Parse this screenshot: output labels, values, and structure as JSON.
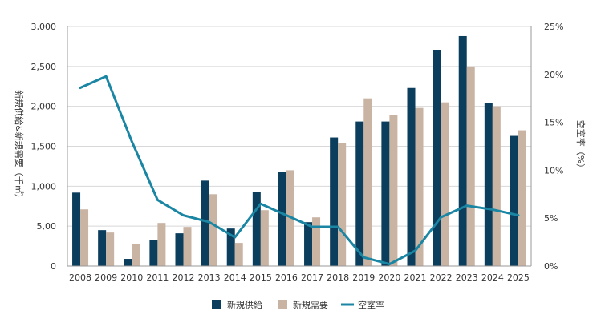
{
  "chart_data": {
    "type": "bar",
    "categories": [
      "2008",
      "2009",
      "2010",
      "2011",
      "2012",
      "2013",
      "2014",
      "2015",
      "2016",
      "2017",
      "2018",
      "2019",
      "2020",
      "2021",
      "2022",
      "2023",
      "2024",
      "2025"
    ],
    "series": [
      {
        "name": "新規供給",
        "type": "bar",
        "axis": "left",
        "color": "#0b3d5c",
        "values": [
          920,
          450,
          90,
          330,
          410,
          1070,
          470,
          930,
          1180,
          550,
          1610,
          1810,
          1810,
          2230,
          2700,
          2880,
          2040,
          1630
        ]
      },
      {
        "name": "新規需要",
        "type": "bar",
        "axis": "left",
        "color": "#c9b3a3",
        "values": [
          710,
          420,
          280,
          540,
          490,
          900,
          290,
          700,
          1200,
          610,
          1540,
          2100,
          1890,
          1980,
          2050,
          2500,
          2000,
          1700
        ]
      },
      {
        "name": "空室率",
        "type": "line",
        "axis": "right",
        "color": "#1a86a3",
        "values": [
          18.6,
          19.8,
          13.0,
          6.9,
          5.3,
          4.6,
          3.0,
          6.5,
          5.3,
          4.1,
          4.1,
          0.9,
          0.2,
          1.6,
          5.1,
          6.3,
          5.9,
          5.3
        ]
      }
    ],
    "ylabel": "新規供給&新規需要（千㎡）",
    "y2label": "空室率（%）",
    "xlabel": "",
    "title": "",
    "ylim": [
      0,
      3000
    ],
    "y2lim": [
      0,
      25
    ],
    "yticks": [
      "0",
      "5,00",
      "1,000",
      "1,500",
      "2,000",
      "2,500",
      "3,000"
    ],
    "ytick_values": [
      0,
      500,
      1000,
      1500,
      2000,
      2500,
      3000
    ],
    "y2ticks": [
      "0%",
      "5%",
      "10%",
      "15%",
      "20%",
      "25%"
    ],
    "y2tick_values": [
      0,
      5,
      10,
      15,
      20,
      25
    ],
    "grid": true,
    "legend_position": "bottom-center"
  }
}
